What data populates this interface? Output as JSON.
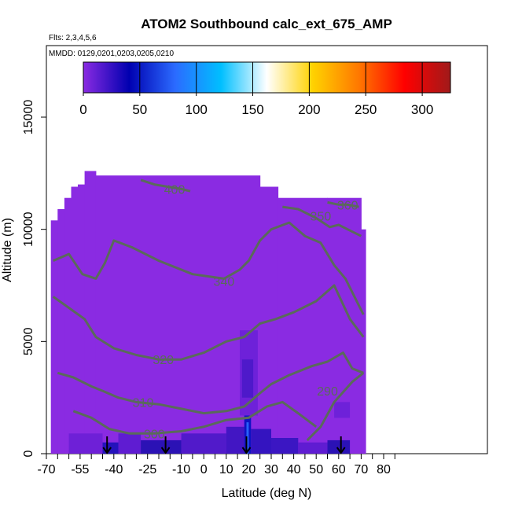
{
  "chart_data": {
    "type": "heatmap",
    "title": "ATOM2 Southbound calc_ext_675_AMP",
    "flights_label": "Flts: 2,3,4,5,6",
    "dates_label": "MMDD: 0129,0201,0203,0205,0210",
    "xlabel": "Latitude (deg N)",
    "ylabel": "Altitude (m)",
    "xlim": [
      -70,
      85
    ],
    "ylim": [
      0,
      17500
    ],
    "x_ticks": [
      -70,
      -55,
      -40,
      -25,
      -10,
      0,
      10,
      20,
      30,
      40,
      50,
      60,
      70,
      80
    ],
    "x_minor_ticks": [
      -65,
      -60,
      -50,
      -45,
      -35,
      -30,
      -20,
      -15,
      -5,
      5,
      15,
      25,
      35,
      45,
      55,
      65,
      75,
      85
    ],
    "y_ticks": [
      0,
      5000,
      10000,
      15000
    ],
    "colorbar": {
      "range": [
        0,
        325
      ],
      "ticks": [
        0,
        50,
        100,
        150,
        200,
        250,
        300
      ],
      "colors": [
        "#8a2be2",
        "#0000b0",
        "#2b6bff",
        "#00bfff",
        "#ffffff",
        "#ffd200",
        "#ff7800",
        "#ff0000",
        "#a01a1a"
      ]
    },
    "background_value_color": "#8a2be2",
    "contours": [
      {
        "label": "290",
        "lat": 55,
        "alt": 2800,
        "points": [
          [
            46,
            600
          ],
          [
            52,
            1200
          ],
          [
            58,
            2300
          ],
          [
            66,
            3200
          ],
          [
            71,
            3600
          ]
        ]
      },
      {
        "label": "300",
        "lat": -22,
        "alt": 900,
        "points": [
          [
            -58,
            1900
          ],
          [
            -50,
            1600
          ],
          [
            -42,
            1100
          ],
          [
            -33,
            900
          ],
          [
            -22,
            900
          ],
          [
            -10,
            1000
          ],
          [
            0,
            1200
          ],
          [
            10,
            1500
          ],
          [
            20,
            1600
          ],
          [
            28,
            2100
          ],
          [
            35,
            2300
          ],
          [
            42,
            1800
          ],
          [
            50,
            1200
          ]
        ]
      },
      {
        "label": "310",
        "lat": -27,
        "alt": 2300,
        "points": [
          [
            -65,
            3600
          ],
          [
            -58,
            3400
          ],
          [
            -50,
            3000
          ],
          [
            -45,
            2800
          ],
          [
            -38,
            2500
          ],
          [
            -30,
            2300
          ],
          [
            -20,
            2200
          ],
          [
            -10,
            2000
          ],
          [
            0,
            1800
          ],
          [
            10,
            1900
          ],
          [
            18,
            2100
          ],
          [
            25,
            2700
          ],
          [
            30,
            3100
          ],
          [
            38,
            3500
          ],
          [
            48,
            3900
          ],
          [
            55,
            4100
          ],
          [
            62,
            4500
          ],
          [
            66,
            3800
          ],
          [
            71,
            3600
          ]
        ]
      },
      {
        "label": "320",
        "lat": -18,
        "alt": 4200,
        "points": [
          [
            -67,
            7000
          ],
          [
            -60,
            6500
          ],
          [
            -53,
            6000
          ],
          [
            -48,
            5200
          ],
          [
            -40,
            4700
          ],
          [
            -30,
            4400
          ],
          [
            -20,
            4200
          ],
          [
            -10,
            4200
          ],
          [
            0,
            4500
          ],
          [
            10,
            5000
          ],
          [
            18,
            5200
          ],
          [
            25,
            5800
          ],
          [
            32,
            6000
          ],
          [
            40,
            6300
          ],
          [
            50,
            6800
          ],
          [
            58,
            7500
          ],
          [
            65,
            6000
          ],
          [
            71,
            5200
          ]
        ]
      },
      {
        "label": "340",
        "lat": 9,
        "alt": 7700,
        "points": [
          [
            -67,
            8600
          ],
          [
            -60,
            8900
          ],
          [
            -54,
            8000
          ],
          [
            -48,
            7800
          ],
          [
            -44,
            8500
          ],
          [
            -40,
            9500
          ],
          [
            -32,
            9200
          ],
          [
            -20,
            8600
          ],
          [
            -5,
            8000
          ],
          [
            9,
            7800
          ],
          [
            16,
            8200
          ],
          [
            20,
            8600
          ],
          [
            25,
            9500
          ],
          [
            30,
            10000
          ],
          [
            38,
            10300
          ],
          [
            45,
            9700
          ],
          [
            52,
            9400
          ],
          [
            58,
            8400
          ],
          [
            63,
            7800
          ],
          [
            71,
            6200
          ]
        ]
      },
      {
        "label": "350",
        "lat": 52,
        "alt": 10600,
        "points": [
          [
            35,
            11000
          ],
          [
            42,
            10900
          ],
          [
            50,
            10500
          ],
          [
            56,
            10100
          ],
          [
            60,
            10200
          ],
          [
            64,
            10000
          ],
          [
            70,
            9700
          ]
        ]
      },
      {
        "label": "360",
        "lat": 64,
        "alt": 11100,
        "points": [
          [
            55,
            11200
          ],
          [
            60,
            11100
          ],
          [
            64,
            11100
          ],
          [
            69,
            11000
          ]
        ]
      },
      {
        "label": "400",
        "lat": -13,
        "alt": 11800,
        "points": [
          [
            -28,
            12200
          ],
          [
            -22,
            12000
          ],
          [
            -16,
            11900
          ],
          [
            -10,
            11800
          ],
          [
            -6,
            11700
          ]
        ]
      }
    ],
    "arrows": [
      {
        "lat": -43,
        "alt": 0
      },
      {
        "lat": -17,
        "alt": 0
      },
      {
        "lat": 19,
        "alt": 0
      },
      {
        "lat": 61,
        "alt": 0
      }
    ]
  }
}
